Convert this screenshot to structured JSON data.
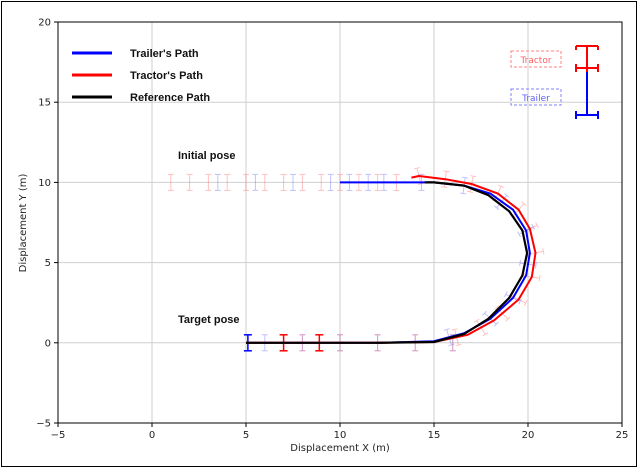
{
  "chart_data": {
    "type": "line",
    "xlabel": "Displacement X (m)",
    "ylabel": "Displacement Y (m)",
    "xlim": [
      -5,
      25
    ],
    "ylim": [
      -5,
      20
    ],
    "xticks": [
      -5,
      0,
      5,
      10,
      15,
      20,
      25
    ],
    "yticks": [
      -5,
      0,
      5,
      10,
      15,
      20
    ],
    "xtick_labels": [
      "−5",
      "0",
      "5",
      "10",
      "15",
      "20",
      "25"
    ],
    "ytick_labels": [
      "−5",
      "0",
      "5",
      "10",
      "15",
      "20"
    ],
    "grid": true,
    "legend_position": "top-left",
    "series": [
      {
        "name": "Trailer's Path",
        "color": "#0000ff",
        "x": [
          5,
          8,
          12,
          15,
          16.6,
          18,
          19.2,
          19.9,
          20.1,
          19.9,
          19.2,
          18,
          16.6,
          15,
          13,
          11,
          10
        ],
        "y": [
          0,
          0,
          0,
          0.1,
          0.6,
          1.5,
          2.8,
          4.2,
          5.6,
          7.0,
          8.3,
          9.3,
          9.8,
          10,
          10,
          10,
          10
        ]
      },
      {
        "name": "Tractor's Path",
        "color": "#ff0000",
        "x": [
          5,
          8,
          12,
          15,
          16.8,
          18.2,
          19.5,
          20.2,
          20.4,
          20.1,
          19.5,
          18.4,
          17,
          15.6,
          14.2,
          13.8
        ],
        "y": [
          0,
          0,
          0,
          0.05,
          0.5,
          1.4,
          2.7,
          4.1,
          5.6,
          7.1,
          8.3,
          9.3,
          9.9,
          10.2,
          10.4,
          10.3
        ]
      },
      {
        "name": "Reference Path",
        "color": "#000000",
        "x": [
          5,
          8,
          12,
          15,
          16.6,
          17.9,
          19.0,
          19.7,
          19.95,
          19.7,
          19.0,
          17.9,
          16.6,
          15,
          14.5
        ],
        "y": [
          0,
          0,
          0,
          0.05,
          0.55,
          1.5,
          2.8,
          4.2,
          5.6,
          7.0,
          8.2,
          9.2,
          9.8,
          10,
          10
        ]
      }
    ],
    "annotations": [
      {
        "text": "Initial pose",
        "x": 1.5,
        "y": 11.6
      },
      {
        "text": "Target pose",
        "x": 1.5,
        "y": 1.4
      }
    ],
    "vehicle_legend": {
      "tractor_label": "Tractor",
      "trailer_label": "Trailer",
      "tractor_color": "#ff0000",
      "trailer_color": "#0000ff"
    }
  }
}
